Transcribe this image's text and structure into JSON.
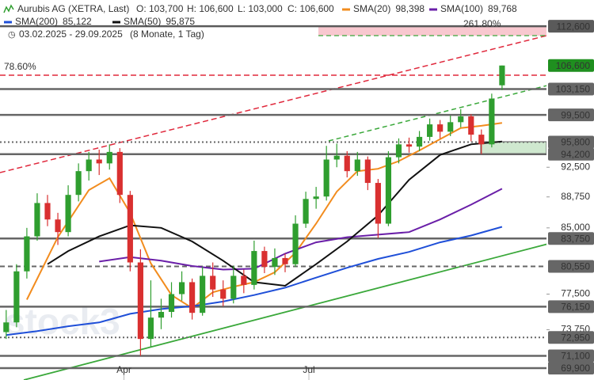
{
  "chart_data": {
    "type": "candlestick",
    "title": "Aurubis AG (XETRA, Last)",
    "quote": [
      "O: 103,700",
      "H: 106,600",
      "L: 103,000",
      "C: 106,600"
    ],
    "period": "03.02.2025 - 29.09.2025",
    "interval": "(8 Monate, 1 Tag)",
    "watermark": "stock3",
    "log_scale": true,
    "xlim": [
      -0.6,
      52.3
    ],
    "ylim": [
      68.75,
      116.8
    ],
    "xticks": [
      {
        "value": 11.4,
        "label": "Apr"
      },
      {
        "value": 29.3,
        "label": "Jul"
      }
    ],
    "yticks": [
      {
        "value": 92.5,
        "label": "92,500"
      },
      {
        "value": 88.75,
        "label": "88,750"
      },
      {
        "value": 85,
        "label": "85,000"
      },
      {
        "value": 77.5,
        "label": "77,500"
      },
      {
        "value": 73.75,
        "label": "73,750"
      }
    ],
    "up_color": "#2f9e2f",
    "down_color": "#d93030",
    "open": [
      73.5,
      74.5,
      80.0,
      84.0,
      88.0,
      86.0,
      84.5,
      89.0,
      92.0,
      93.5,
      93.0,
      94.5,
      89.0,
      81.0,
      72.8,
      75.0,
      75.6,
      77.5,
      78.8,
      75.5,
      79.5,
      78.0,
      77.0,
      79.5,
      78.5,
      82.3,
      80.5,
      81.5,
      80.8,
      85.5,
      88.5,
      88.8,
      93.5,
      94.0,
      92.0,
      93.5,
      90.5,
      85.5,
      93.8,
      95.5,
      95.2,
      96.5,
      98.2,
      97.2,
      98.5,
      99.3,
      96.8,
      95.5,
      103.7
    ],
    "high": [
      75.8,
      80.8,
      85.0,
      89.2,
      89.0,
      86.8,
      90.2,
      93.0,
      94.5,
      94.8,
      95.5,
      95.0,
      89.5,
      82.5,
      79.0,
      77.0,
      78.8,
      80.0,
      79.2,
      80.5,
      81.0,
      79.0,
      80.6,
      80.2,
      83.5,
      82.8,
      82.6,
      82.0,
      86.5,
      89.4,
      90.0,
      95.3,
      95.6,
      94.6,
      94.5,
      93.9,
      91.0,
      94.6,
      96.3,
      96.4,
      97.3,
      99.0,
      98.8,
      99.4,
      100.3,
      99.6,
      97.5,
      102.5,
      106.6
    ],
    "low": [
      72.8,
      74.0,
      79.2,
      83.5,
      85.2,
      83.0,
      84.0,
      88.2,
      90.8,
      91.5,
      92.2,
      88.0,
      80.0,
      71.1,
      72.0,
      73.8,
      75.0,
      76.8,
      74.8,
      75.2,
      77.2,
      76.2,
      76.5,
      77.6,
      78.0,
      79.8,
      79.6,
      79.9,
      80.5,
      85.0,
      87.3,
      88.3,
      92.5,
      91.2,
      91.4,
      89.6,
      83.8,
      85.2,
      93.0,
      94.4,
      94.6,
      96.0,
      96.3,
      96.6,
      97.8,
      95.9,
      94.2,
      95.1,
      103.0
    ],
    "close": [
      74.5,
      80.0,
      84.0,
      88.0,
      86.0,
      84.5,
      89.0,
      92.0,
      93.5,
      93.0,
      94.5,
      89.0,
      81.0,
      72.8,
      75.0,
      75.6,
      77.5,
      78.8,
      75.5,
      79.5,
      78.0,
      77.0,
      79.5,
      78.5,
      82.3,
      80.5,
      81.5,
      80.8,
      85.5,
      88.5,
      88.8,
      93.5,
      94.0,
      92.0,
      93.5,
      90.5,
      85.5,
      93.8,
      95.5,
      95.2,
      96.5,
      98.2,
      97.2,
      98.5,
      99.3,
      96.8,
      95.5,
      101.8,
      106.6
    ],
    "series": [
      {
        "name": "SMA(20)",
        "color": "#f28c1e",
        "last_label": "98,398",
        "x": [
          2,
          5,
          8,
          10,
          12,
          14,
          16,
          18,
          20,
          22,
          24,
          26,
          28,
          30,
          32,
          34,
          36,
          38,
          40,
          42,
          44,
          46,
          48
        ],
        "values": [
          76.9,
          83.9,
          89.6,
          91.1,
          86.8,
          80.9,
          77.4,
          76.0,
          77.7,
          78.3,
          78.8,
          79.9,
          82.1,
          85.5,
          89.4,
          92.0,
          92.3,
          93.3,
          94.7,
          96.2,
          97.7,
          98.0,
          98.398
        ]
      },
      {
        "name": "SMA(100)",
        "color": "#6a1fa8",
        "last_label": "89,768",
        "x": [
          9,
          12,
          15,
          18,
          21,
          24,
          27,
          30,
          33,
          36,
          39,
          42,
          45,
          48
        ],
        "values": [
          81.1,
          81.6,
          81.2,
          80.6,
          80.2,
          80.3,
          82.0,
          83.3,
          83.9,
          84.2,
          84.5,
          86.0,
          87.8,
          89.768
        ]
      },
      {
        "name": "SMA(200)",
        "color": "#1f4fd8",
        "last_label": "85,122",
        "x": [
          0,
          3,
          6,
          9,
          12,
          15,
          18,
          21,
          24,
          27,
          30,
          33,
          36,
          39,
          42,
          45,
          48
        ],
        "values": [
          73.2,
          73.6,
          74.1,
          74.5,
          75.4,
          75.9,
          76.2,
          76.7,
          77.4,
          78.2,
          79.3,
          80.4,
          81.4,
          82.2,
          83.3,
          84.1,
          85.122
        ]
      },
      {
        "name": "SMA(50)",
        "color": "#111111",
        "last_label": "95,875",
        "x": [
          4,
          6,
          9,
          12,
          15,
          18,
          21,
          24,
          27,
          30,
          33,
          36,
          39,
          42,
          45,
          48
        ],
        "values": [
          80.8,
          82.3,
          84.0,
          85.3,
          85.0,
          83.4,
          81.2,
          78.8,
          78.4,
          80.8,
          83.4,
          86.5,
          90.9,
          94.1,
          95.5,
          95.875
        ]
      }
    ],
    "levels": [
      {
        "value": 112.6,
        "label": "112,600",
        "style": "solid",
        "color": "#5a5a5a"
      },
      {
        "value": 106.6,
        "label": "106,600",
        "style": "none",
        "color": "#1f8f1f"
      },
      {
        "value": 103.15,
        "label": "103,150",
        "style": "solid",
        "color": "#666666"
      },
      {
        "value": 99.5,
        "label": "99,500",
        "style": "solid",
        "color": "#666666"
      },
      {
        "value": 95.8,
        "label": "95,800",
        "style": "dotted",
        "color": "#666666"
      },
      {
        "value": 94.2,
        "label": "94,200",
        "style": "solid",
        "color": "#666666"
      },
      {
        "value": 83.75,
        "label": "83,750",
        "style": "solid",
        "color": "#666666"
      },
      {
        "value": 80.55,
        "label": "80,550",
        "style": "dashed",
        "color": "#666666"
      },
      {
        "value": 76.15,
        "label": "76,150",
        "style": "solid",
        "color": "#666666"
      },
      {
        "value": 72.95,
        "label": "72,950",
        "style": "dotted",
        "color": "#666666"
      },
      {
        "value": 71.1,
        "label": "71,100",
        "style": "solid",
        "color": "#666666"
      },
      {
        "value": 69.9,
        "label": "69,900",
        "style": "solid",
        "color": "#666666"
      }
    ],
    "annotations": [
      {
        "text": "78.60%",
        "color": "#e0283c"
      },
      {
        "text": "261.80%",
        "color": "#3aa83a"
      }
    ]
  }
}
